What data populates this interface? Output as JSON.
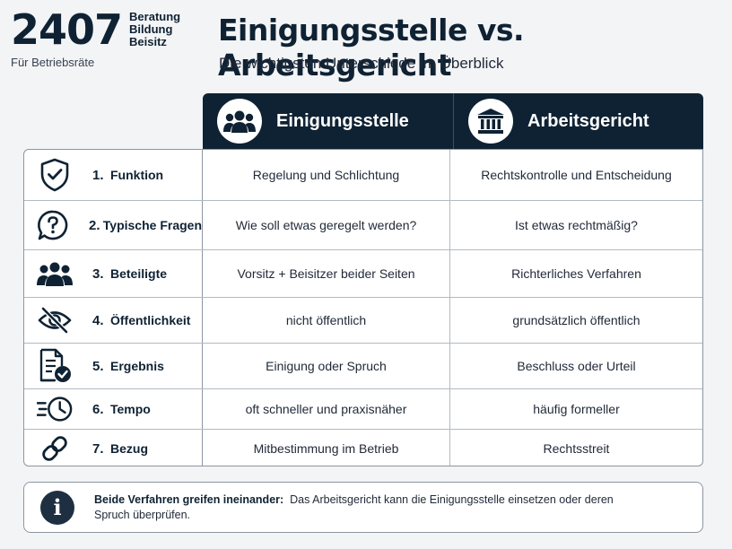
{
  "logo": {
    "number": "2407",
    "words": [
      "Beratung",
      "Bildung",
      "Beisitz"
    ],
    "subline": "Für Betriebsräte"
  },
  "title": "Einigungsstelle vs. Arbeitsgericht",
  "subtitle": "Die wichtigsten Unterschiede im Überblick",
  "columns": [
    {
      "label": "Einigungsstelle",
      "icon": "group-icon"
    },
    {
      "label": "Arbeitsgericht",
      "icon": "courthouse-icon"
    }
  ],
  "rows": [
    {
      "num": "1.",
      "label": "Funktion",
      "icon": "shield-check-icon",
      "col1": "Regelung und Schlichtung",
      "col2": "Rechtskontrolle und Entscheidung"
    },
    {
      "num": "2.",
      "label": "Typische Fragen",
      "icon": "question-bubble-icon",
      "col1": "Wie soll etwas geregelt werden?",
      "col2": "Ist etwas rechtmäßig?"
    },
    {
      "num": "3.",
      "label": "Beteiligte",
      "icon": "people-icon",
      "col1": "Vorsitz + Beisitzer beider Seiten",
      "col2": "Richterliches Verfahren"
    },
    {
      "num": "4.",
      "label": "Öffentlichkeit",
      "icon": "eye-off-icon",
      "col1": "nicht öffentlich",
      "col2": "grundsätzlich öffentlich"
    },
    {
      "num": "5.",
      "label": "Ergebnis",
      "icon": "document-check-icon",
      "col1": "Einigung oder Spruch",
      "col2": "Beschluss oder Urteil"
    },
    {
      "num": "6.",
      "label": "Tempo",
      "icon": "fast-clock-icon",
      "col1": "oft schneller und praxisnäher",
      "col2": "häufig formeller"
    },
    {
      "num": "7.",
      "label": "Bezug",
      "icon": "link-icon",
      "col1": "Mitbestimmung im Betrieb",
      "col2": "Rechtsstreit"
    }
  ],
  "note": {
    "icon": "info-icon",
    "bold": "Beide Verfahren greifen ineinander:",
    "text": "Das Arbeitsgericht kann die Einigungsstelle einsetzen oder deren Spruch überprüfen."
  },
  "colors": {
    "navy": "#0f2233",
    "background": "#f3f4f6"
  }
}
